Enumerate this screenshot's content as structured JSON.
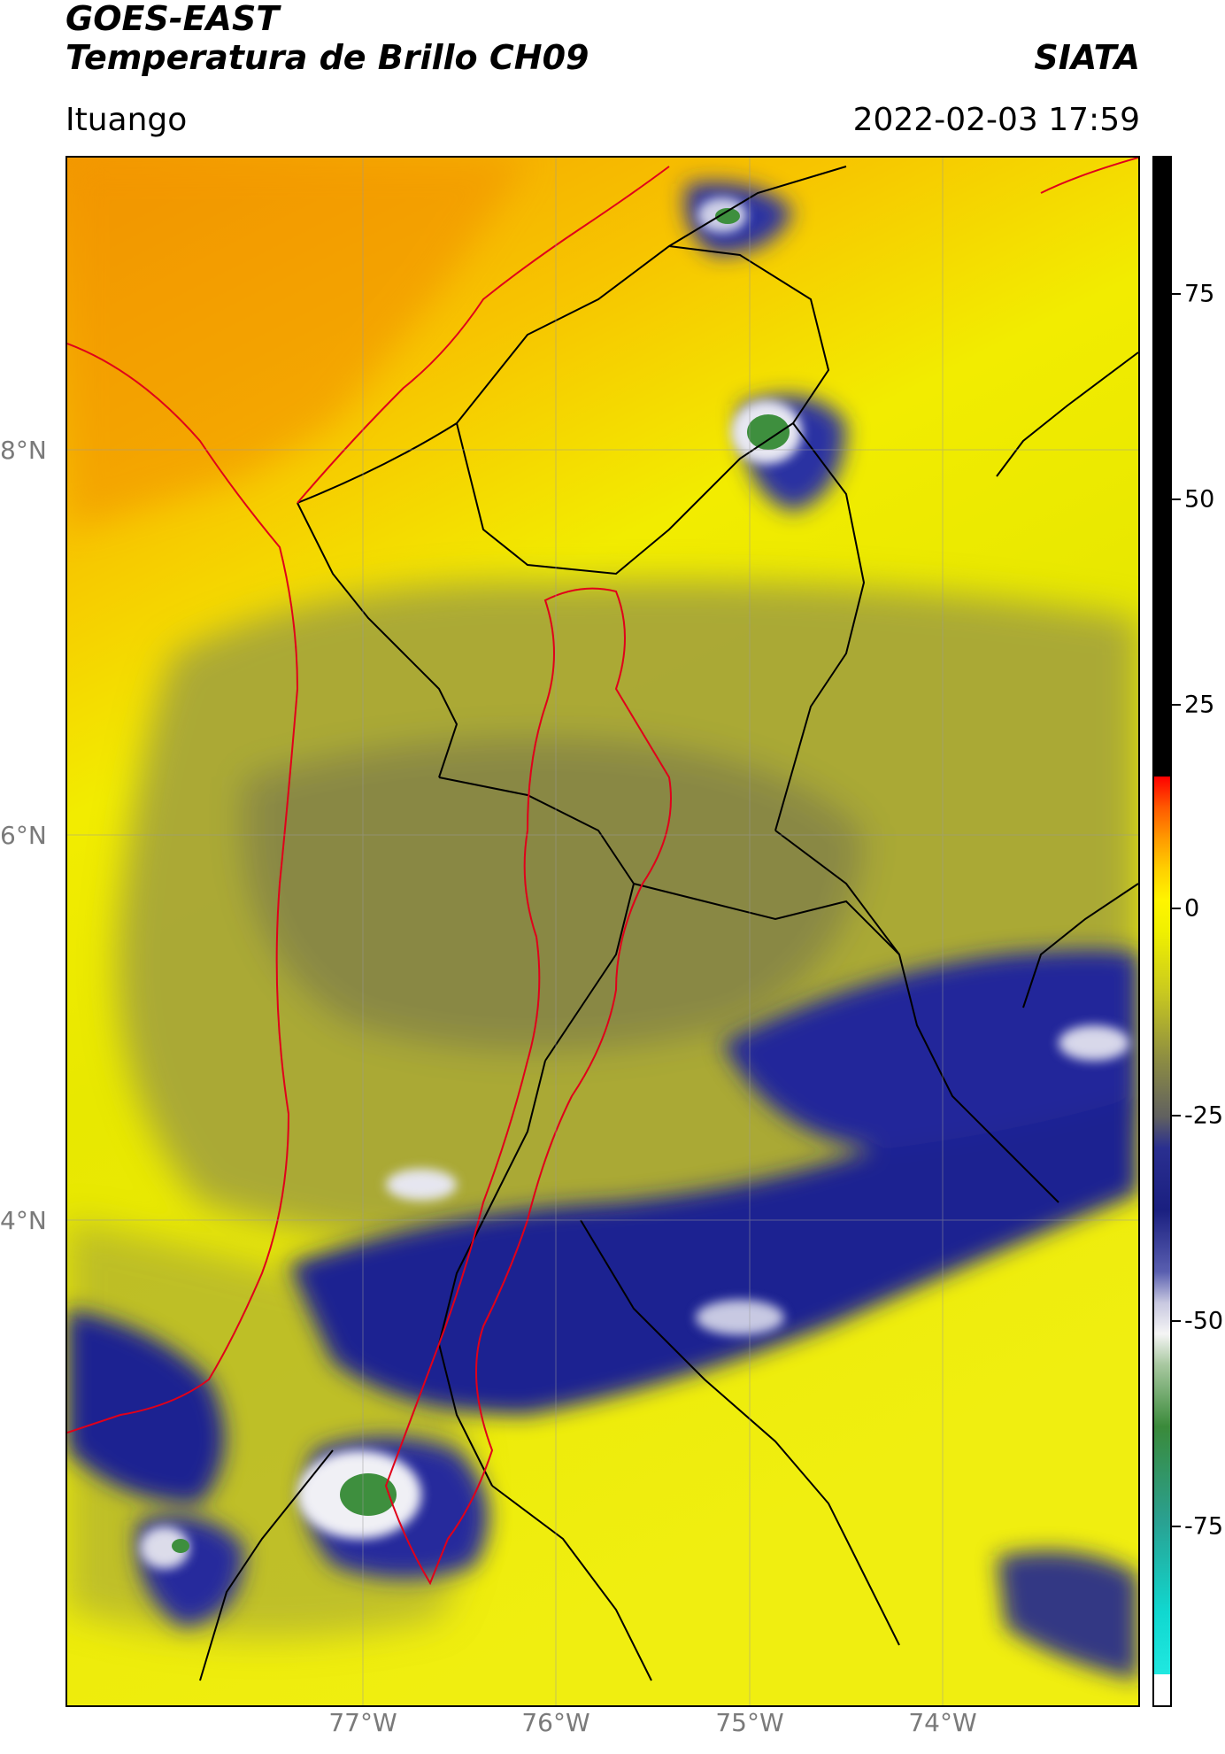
{
  "header": {
    "title_line1": "GOES-EAST",
    "title_line2": "Temperatura de Brillo CH09",
    "brand": "SIATA",
    "location": "Ituango",
    "datetime": "2022-02-03 17:59"
  },
  "map": {
    "lat_labels": [
      "8°N",
      "6°N",
      "4°N"
    ],
    "lon_labels": [
      "77°W",
      "76°W",
      "75°W",
      "74°W"
    ],
    "colors": {
      "warm": "#f7a800",
      "yellow": "#f6ee00",
      "olive": "#8c8c3a",
      "navy": "#1a1f8a",
      "white": "#f2f2f5",
      "green": "#3a8a3a",
      "border_black": "#000000",
      "border_red": "#e0001a"
    }
  },
  "colorbar": {
    "ticks": [
      "75",
      "50",
      "25",
      "0",
      "-25",
      "-50",
      "-75"
    ]
  }
}
